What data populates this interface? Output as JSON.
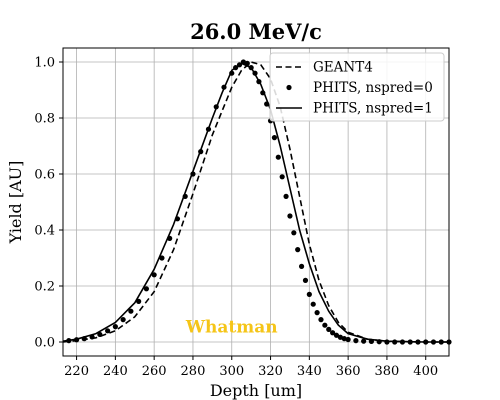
{
  "chart_data": {
    "type": "line",
    "title": "26.0 MeV/c",
    "xlabel": "Depth [um]",
    "ylabel": "Yield [AU]",
    "xlim": [
      213,
      412
    ],
    "ylim": [
      -0.05,
      1.05
    ],
    "xticks": [
      220,
      240,
      260,
      280,
      300,
      320,
      340,
      360,
      380,
      400
    ],
    "yticks": [
      0.0,
      0.2,
      0.4,
      0.6,
      0.8,
      1.0
    ],
    "xtick_labels": [
      "220",
      "240",
      "260",
      "280",
      "300",
      "320",
      "340",
      "360",
      "380",
      "400"
    ],
    "ytick_labels": [
      "0.0",
      "0.2",
      "0.4",
      "0.6",
      "0.8",
      "1.0"
    ],
    "grid": true,
    "legend_position": "top-right",
    "annotation": {
      "text": "Whatman",
      "x": 300,
      "y": 0.055,
      "color": "#f5c518"
    },
    "series": [
      {
        "name": "GEANT4",
        "style": "dashed",
        "color": "#000000",
        "x": [
          212,
          220,
          230,
          240,
          250,
          260,
          270,
          280,
          290,
          300,
          305,
          310,
          315,
          320,
          325,
          330,
          335,
          340,
          345,
          350,
          355,
          360,
          370,
          380,
          390,
          400,
          412
        ],
        "y": [
          0.0,
          0.005,
          0.015,
          0.04,
          0.09,
          0.18,
          0.33,
          0.53,
          0.74,
          0.91,
          0.97,
          1.0,
          0.99,
          0.94,
          0.84,
          0.69,
          0.52,
          0.35,
          0.22,
          0.13,
          0.07,
          0.035,
          0.01,
          0.003,
          0.001,
          0.0,
          0.0
        ]
      },
      {
        "name": "PHITS, nspred=0",
        "style": "dots",
        "color": "#000000",
        "x": [
          212,
          216,
          220,
          224,
          228,
          232,
          236,
          240,
          244,
          248,
          252,
          256,
          260,
          264,
          268,
          272,
          276,
          280,
          284,
          288,
          292,
          296,
          300,
          302,
          304,
          306,
          308,
          310,
          312,
          314,
          316,
          318,
          320,
          322,
          324,
          326,
          328,
          330,
          332,
          334,
          336,
          338,
          340,
          342,
          344,
          346,
          348,
          350,
          352,
          354,
          356,
          358,
          360,
          364,
          368,
          372,
          376,
          380,
          384,
          388,
          392,
          396,
          400,
          404,
          408,
          412
        ],
        "y": [
          0.003,
          0.005,
          0.008,
          0.012,
          0.018,
          0.027,
          0.04,
          0.055,
          0.08,
          0.11,
          0.145,
          0.19,
          0.24,
          0.3,
          0.37,
          0.44,
          0.52,
          0.6,
          0.68,
          0.76,
          0.84,
          0.91,
          0.96,
          0.98,
          0.99,
          1.0,
          0.995,
          0.98,
          0.96,
          0.93,
          0.89,
          0.85,
          0.79,
          0.73,
          0.66,
          0.59,
          0.52,
          0.45,
          0.39,
          0.33,
          0.27,
          0.22,
          0.17,
          0.135,
          0.105,
          0.08,
          0.06,
          0.045,
          0.033,
          0.024,
          0.017,
          0.012,
          0.009,
          0.005,
          0.003,
          0.002,
          0.001,
          0.0,
          0.0,
          0.0,
          0.0,
          0.0,
          0.0,
          0.0,
          0.0,
          0.0
        ]
      },
      {
        "name": "PHITS, nspred=1",
        "style": "solid",
        "color": "#000000",
        "x": [
          212,
          220,
          230,
          240,
          250,
          260,
          270,
          280,
          290,
          295,
          300,
          305,
          310,
          315,
          320,
          325,
          330,
          335,
          340,
          345,
          350,
          355,
          360,
          370,
          380,
          390,
          400,
          412
        ],
        "y": [
          0.003,
          0.01,
          0.03,
          0.07,
          0.14,
          0.26,
          0.42,
          0.61,
          0.8,
          0.89,
          0.97,
          0.995,
          0.98,
          0.92,
          0.83,
          0.7,
          0.55,
          0.4,
          0.28,
          0.18,
          0.11,
          0.06,
          0.03,
          0.01,
          0.003,
          0.001,
          0.0,
          0.0
        ]
      }
    ]
  }
}
